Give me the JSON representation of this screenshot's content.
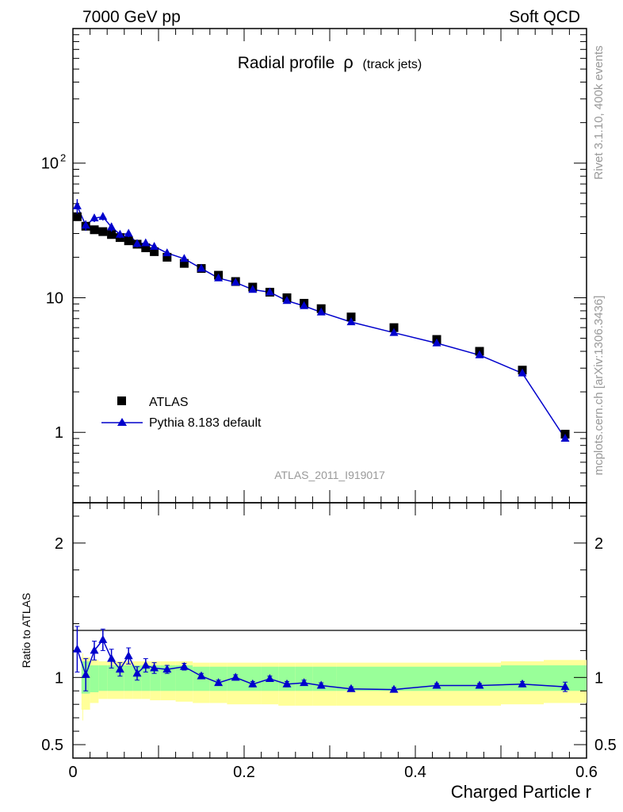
{
  "header": {
    "left": "7000 GeV pp",
    "right": "Soft QCD"
  },
  "side_labels": {
    "rivet": "Rivet 3.1.10,  400k events",
    "mcplots": "mcplots.cern.ch [arXiv:1306.3436]"
  },
  "chart_data": {
    "type": "scatter",
    "title": "Radial profile",
    "title_symbol": "ρ",
    "title_suffix": "(track jets)",
    "analysis_id": "ATLAS_2011_I919017",
    "xlabel": "Charged Particle r",
    "ylabel": "",
    "xlim": [
      0,
      0.6
    ],
    "ylim": [
      0.3,
      1000
    ],
    "yscale": "log",
    "x_ticks": [
      0,
      0.2,
      0.4,
      0.6
    ],
    "x_tick_labels": [
      "0",
      "0.2",
      "0.4",
      "0.6"
    ],
    "y_ticks": [
      1,
      10,
      100
    ],
    "y_tick_labels": [
      "1",
      "10",
      "10",
      ""
    ],
    "y_tick_exponent": "2",
    "legend": [
      {
        "name": "ATLAS",
        "marker": "square",
        "color": "#000000"
      },
      {
        "name": "Pythia 8.183 default",
        "marker": "triangle",
        "color": "#0000cc"
      }
    ],
    "x": [
      0.005,
      0.015,
      0.025,
      0.035,
      0.045,
      0.055,
      0.065,
      0.075,
      0.085,
      0.095,
      0.11,
      0.13,
      0.15,
      0.17,
      0.19,
      0.21,
      0.23,
      0.25,
      0.27,
      0.29,
      0.325,
      0.375,
      0.425,
      0.475,
      0.525,
      0.575
    ],
    "series": [
      {
        "name": "ATLAS",
        "values": [
          40,
          34,
          32,
          31,
          29.5,
          28,
          26.5,
          25,
          23.5,
          22,
          20,
          18,
          16.5,
          14.7,
          13.2,
          12,
          11,
          10,
          9.1,
          8.3,
          7.2,
          6.0,
          4.9,
          4.0,
          2.9,
          0.97
        ]
      },
      {
        "name": "Pythia 8.183 default",
        "values": [
          48,
          34.5,
          39,
          40,
          33.5,
          29.5,
          30,
          25.2,
          25.5,
          24,
          21.5,
          19.5,
          16.5,
          14,
          13,
          11.5,
          11,
          9.5,
          8.7,
          7.8,
          6.6,
          5.5,
          4.6,
          3.75,
          2.75,
          0.9
        ],
        "errors": [
          6,
          3,
          2.5,
          2.5,
          2.5,
          1.8,
          1.8,
          1.5,
          1.2,
          1,
          0.8,
          0.6,
          0.4,
          0.3,
          0.3,
          0.3,
          0.3,
          0.25,
          0.2,
          0.2,
          0.15,
          0.12,
          0.1,
          0.08,
          0.08,
          0.04
        ]
      }
    ],
    "ratio_panel": {
      "ylabel": "Ratio to ATLAS",
      "ylim": [
        0.4,
        2.3
      ],
      "y_ticks": [
        0.5,
        1,
        2
      ],
      "y_tick_labels": [
        "0.5",
        "1",
        "2"
      ],
      "values": [
        1.21,
        1.02,
        1.2,
        1.28,
        1.14,
        1.06,
        1.16,
        1.03,
        1.09,
        1.07,
        1.06,
        1.08,
        1.01,
        0.96,
        1.0,
        0.95,
        0.99,
        0.95,
        0.96,
        0.94,
        0.915,
        0.91,
        0.94,
        0.94,
        0.95,
        0.93
      ],
      "errors": [
        0.17,
        0.12,
        0.07,
        0.08,
        0.07,
        0.05,
        0.06,
        0.05,
        0.05,
        0.04,
        0.03,
        0.025,
        0.02,
        0.02,
        0.02,
        0.02,
        0.02,
        0.02,
        0.02,
        0.02,
        0.015,
        0.015,
        0.015,
        0.015,
        0.02,
        0.035
      ],
      "band_inner_lo": [
        0.85,
        0.88,
        0.89,
        0.9,
        0.9,
        0.9,
        0.9,
        0.9,
        0.9,
        0.9,
        0.9,
        0.9,
        0.9,
        0.9,
        0.9,
        0.9,
        0.9,
        0.9,
        0.9,
        0.9,
        0.9,
        0.9,
        0.9,
        0.9,
        0.9,
        0.9
      ],
      "band_inner_hi": [
        1.15,
        1.12,
        1.09,
        1.09,
        1.09,
        1.09,
        1.09,
        1.09,
        1.09,
        1.09,
        1.09,
        1.09,
        1.08,
        1.08,
        1.08,
        1.08,
        1.08,
        1.08,
        1.08,
        1.08,
        1.08,
        1.08,
        1.08,
        1.08,
        1.09,
        1.09
      ],
      "band_outer_lo": [
        0.68,
        0.76,
        0.81,
        0.84,
        0.84,
        0.84,
        0.84,
        0.84,
        0.84,
        0.83,
        0.83,
        0.82,
        0.81,
        0.81,
        0.8,
        0.8,
        0.8,
        0.79,
        0.79,
        0.79,
        0.79,
        0.79,
        0.79,
        0.79,
        0.8,
        0.81
      ],
      "band_outer_hi": [
        1.18,
        1.15,
        1.13,
        1.12,
        1.12,
        1.12,
        1.12,
        1.12,
        1.12,
        1.12,
        1.12,
        1.12,
        1.11,
        1.11,
        1.11,
        1.11,
        1.11,
        1.11,
        1.11,
        1.11,
        1.11,
        1.11,
        1.11,
        1.11,
        1.12,
        1.13
      ]
    },
    "colors": {
      "data": "#000000",
      "mc": "#0000cc",
      "band_inner": "#99ff99",
      "band_outer": "#ffff99",
      "annotation": "#999999"
    }
  }
}
